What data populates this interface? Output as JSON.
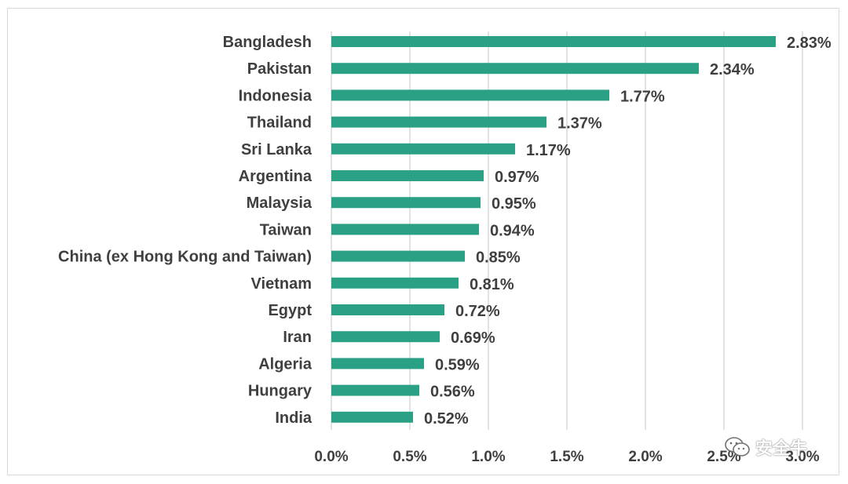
{
  "chart_data": {
    "type": "bar",
    "orientation": "horizontal",
    "categories": [
      "Bangladesh",
      "Pakistan",
      "Indonesia",
      "Thailand",
      "Sri Lanka",
      "Argentina",
      "Malaysia",
      "Taiwan",
      "China (ex Hong Kong and Taiwan)",
      "Vietnam",
      "Egypt",
      "Iran",
      "Algeria",
      "Hungary",
      "India"
    ],
    "values": [
      2.83,
      2.34,
      1.77,
      1.37,
      1.17,
      0.97,
      0.95,
      0.94,
      0.85,
      0.81,
      0.72,
      0.69,
      0.59,
      0.56,
      0.52
    ],
    "value_labels": [
      "2.83%",
      "2.34%",
      "1.77%",
      "1.37%",
      "1.17%",
      "0.97%",
      "0.95%",
      "0.94%",
      "0.85%",
      "0.81%",
      "0.72%",
      "0.69%",
      "0.59%",
      "0.56%",
      "0.52%"
    ],
    "x_ticks": [
      0,
      0.5,
      1.0,
      1.5,
      2.0,
      2.5,
      3.0
    ],
    "x_tick_labels": [
      "0.0%",
      "0.5%",
      "1.0%",
      "1.5%",
      "2.0%",
      "2.5%",
      "3.0%"
    ],
    "xlim": [
      0,
      3.0
    ],
    "grid": "vertical",
    "legend": "none",
    "title": "",
    "xlabel": "",
    "ylabel": "",
    "bar_color": "#2aa184",
    "grid_color": "#d9d9d9",
    "text_color": "#3f3f3f"
  },
  "watermark": {
    "icon": "wechat-icon",
    "text": "安全牛"
  }
}
